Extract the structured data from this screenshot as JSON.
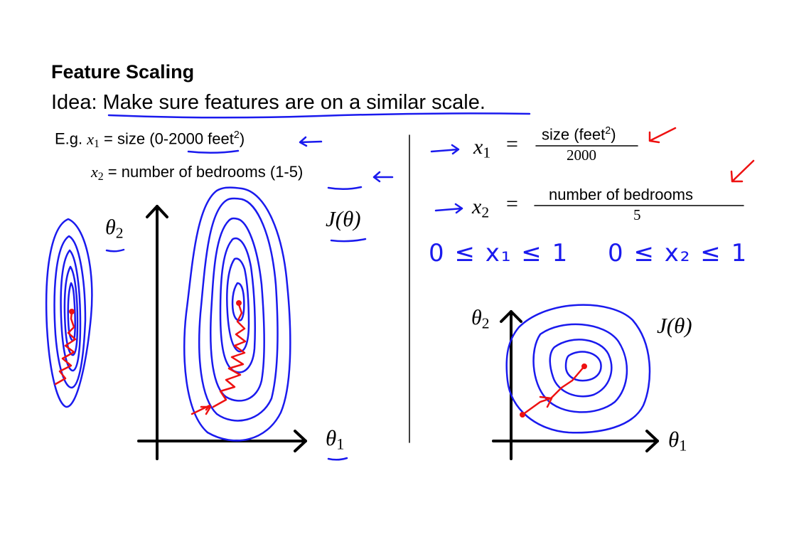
{
  "slide": {
    "title": "Feature Scaling",
    "idea": "Idea: Make sure features are on a similar scale.",
    "example": {
      "prefix": "E.g. ",
      "x1_var": "x",
      "x1_sub": "1",
      "x1_text": " = size (0-2000 feet",
      "x1_sup": "2",
      "x1_close": ")",
      "x2_var": "x",
      "x2_sub": "2",
      "x2_text": " = number of bedrooms (1-5)"
    },
    "left_plot": {
      "theta2": "θ",
      "theta2_sub": "2",
      "cost": "J(θ)",
      "theta1": "θ",
      "theta1_sub": "1"
    },
    "normalized": {
      "x1_var": "x",
      "x1_sub": "1",
      "equals": "=",
      "x1_num_text": "size (feet",
      "x1_num_sup": "2",
      "x1_num_close": ")",
      "x1_den": "2000",
      "x2_var": "x",
      "x2_sub": "2",
      "x2_num": "number of bedrooms",
      "x2_den": "5"
    },
    "handwritten_ranges": {
      "x1": "0 ≤ x₁ ≤ 1",
      "x2": "0 ≤ x₂ ≤ 1"
    },
    "right_plot": {
      "theta2": "θ",
      "theta2_sub": "2",
      "cost": "J(θ)",
      "theta1": "θ",
      "theta1_sub": "1"
    }
  },
  "colors": {
    "ink": "#1a1aee",
    "path": "#ee1111",
    "text": "#000000"
  }
}
